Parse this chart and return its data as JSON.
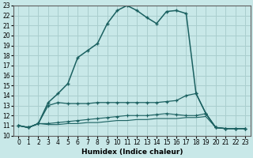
{
  "title": "",
  "xlabel": "Humidex (Indice chaleur)",
  "bg_color": "#c8e8e8",
  "grid_color": "#aacece",
  "line_color": "#1a6060",
  "xlim": [
    -0.5,
    23.5
  ],
  "ylim": [
    10,
    23
  ],
  "xticks": [
    0,
    1,
    2,
    3,
    4,
    5,
    6,
    7,
    8,
    9,
    10,
    11,
    12,
    13,
    14,
    15,
    16,
    17,
    18,
    19,
    20,
    21,
    22,
    23
  ],
  "yticks": [
    10,
    11,
    12,
    13,
    14,
    15,
    16,
    17,
    18,
    19,
    20,
    21,
    22,
    23
  ],
  "series1_x": [
    0,
    1,
    2,
    3,
    4,
    5,
    6,
    7,
    8,
    9,
    10,
    11,
    12,
    13,
    14,
    15,
    16,
    17,
    18,
    19,
    20,
    21,
    22,
    23
  ],
  "series1_y": [
    11.0,
    10.8,
    11.2,
    13.3,
    14.2,
    15.2,
    17.8,
    18.5,
    19.2,
    21.2,
    22.5,
    23.0,
    22.5,
    21.8,
    21.2,
    22.4,
    22.5,
    22.2,
    14.2,
    12.2,
    10.8,
    10.7,
    10.7,
    10.7
  ],
  "series2_x": [
    0,
    1,
    2,
    3,
    4,
    5,
    6,
    7,
    8,
    9,
    10,
    11,
    12,
    13,
    14,
    15,
    16,
    17,
    18,
    19,
    20,
    21,
    22,
    23
  ],
  "series2_y": [
    11.0,
    10.8,
    11.2,
    13.0,
    13.3,
    13.2,
    13.2,
    13.2,
    13.3,
    13.3,
    13.3,
    13.3,
    13.3,
    13.3,
    13.3,
    13.4,
    13.5,
    14.0,
    14.2,
    12.2,
    10.8,
    10.7,
    10.7,
    10.7
  ],
  "series3_x": [
    0,
    1,
    2,
    3,
    4,
    5,
    6,
    7,
    8,
    9,
    10,
    11,
    12,
    13,
    14,
    15,
    16,
    17,
    18,
    19,
    20,
    21,
    22,
    23
  ],
  "series3_y": [
    11.0,
    10.8,
    11.2,
    11.2,
    11.3,
    11.4,
    11.5,
    11.6,
    11.7,
    11.8,
    11.9,
    12.0,
    12.0,
    12.0,
    12.1,
    12.2,
    12.1,
    12.0,
    12.0,
    12.2,
    10.8,
    10.7,
    10.7,
    10.7
  ],
  "series4_x": [
    0,
    1,
    2,
    3,
    4,
    5,
    6,
    7,
    8,
    9,
    10,
    11,
    12,
    13,
    14,
    15,
    16,
    17,
    18,
    19,
    20,
    21,
    22,
    23
  ],
  "series4_y": [
    11.0,
    10.8,
    11.2,
    11.1,
    11.1,
    11.2,
    11.2,
    11.3,
    11.3,
    11.4,
    11.5,
    11.5,
    11.6,
    11.6,
    11.7,
    11.7,
    11.7,
    11.8,
    11.8,
    11.9,
    10.8,
    10.7,
    10.7,
    10.7
  ],
  "tick_fontsize": 5.5,
  "xlabel_fontsize": 6.5
}
